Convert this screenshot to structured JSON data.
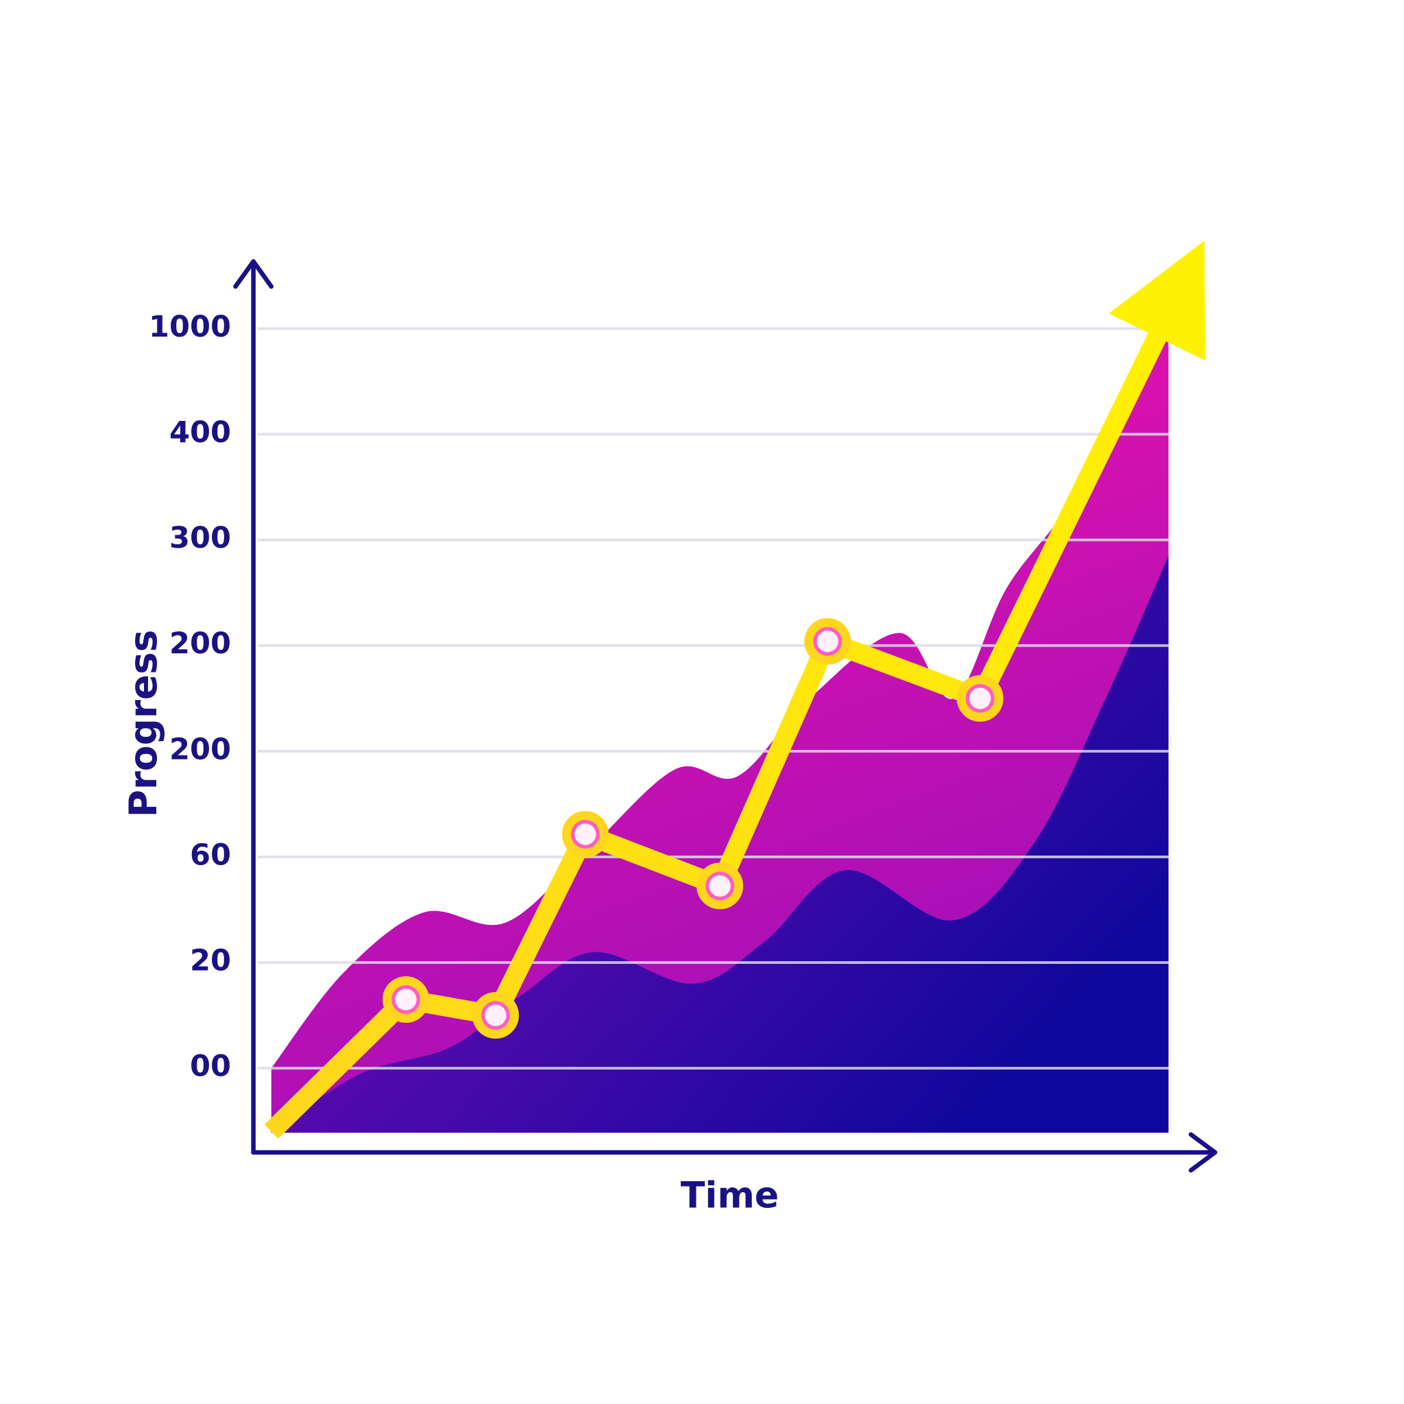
{
  "chart_data": {
    "type": "area-line",
    "y_label": "Progress",
    "x_label": "Time",
    "yticks": [
      {
        "value": 0,
        "label": "00"
      },
      20,
      60,
      200,
      200,
      300,
      400,
      1000
    ],
    "xlim": [
      0,
      100
    ],
    "grid": true,
    "series": [
      {
        "type": "area",
        "color": "#ff12a8",
        "gradient_to": "#a010b8",
        "x": [
          0,
          8,
          17,
          26,
          35,
          45,
          52,
          60,
          70,
          76,
          82,
          90,
          100
        ],
        "values": [
          0,
          18,
          39,
          35,
          66,
          176,
          167,
          200,
          212,
          200,
          255,
          348,
          1113
        ]
      },
      {
        "type": "area",
        "color": "#8c0cbc",
        "gradient_to": "#10089c",
        "x": [
          0,
          10,
          20,
          28,
          36,
          47,
          55,
          64,
          76,
          85,
          93,
          100
        ],
        "values": [
          -12,
          -1,
          4,
          14,
          24,
          16,
          28,
          55,
          36,
          78,
          200,
          285
        ]
      },
      {
        "type": "line",
        "color": "#ffd61e",
        "gradient_to": "#fff200",
        "markers": "interior",
        "arrow": true,
        "x": [
          0,
          15,
          25,
          35,
          50,
          62,
          79,
          104
        ],
        "values": [
          -12,
          13,
          10,
          90,
          49,
          204,
          200,
          1500
        ]
      }
    ]
  }
}
